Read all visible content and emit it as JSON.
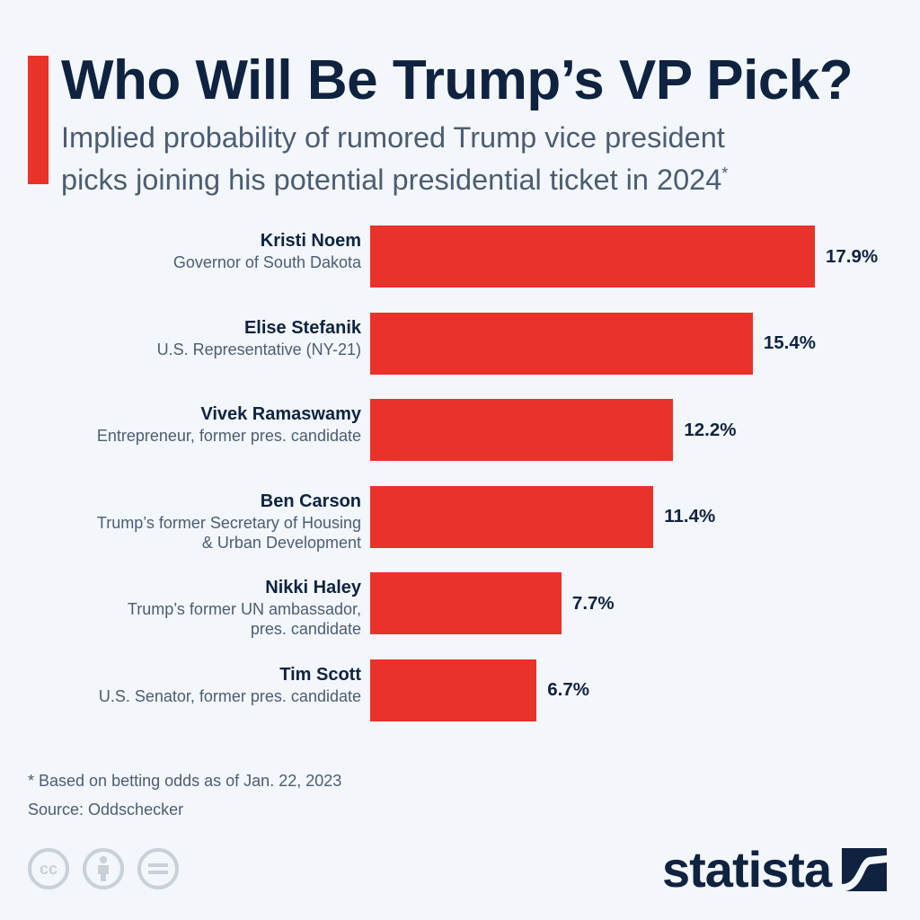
{
  "header": {
    "title": "Who Will Be Trump’s VP Pick?",
    "subtitle_line1": "Implied probability of rumored Trump vice president",
    "subtitle_line2": "picks joining his potential presidential ticket in 2024",
    "subtitle_mark": "*"
  },
  "chart_data": {
    "type": "bar",
    "orientation": "horizontal",
    "title": "Who Will Be Trump’s VP Pick?",
    "xlabel": "",
    "ylabel": "",
    "unit": "%",
    "xlim": [
      0,
      17.9
    ],
    "grid": false,
    "categories": [
      "Kristi Noem",
      "Elise Stefanik",
      "Vivek Ramaswamy",
      "Ben Carson",
      "Nikki Haley",
      "Tim Scott"
    ],
    "descriptions": [
      [
        "Governor of South Dakota"
      ],
      [
        "U.S. Representative (NY-21)"
      ],
      [
        "Entrepreneur, former pres. candidate"
      ],
      [
        "Trump’s former Secretary of Housing",
        "& Urban Development"
      ],
      [
        "Trump’s former UN ambassador,",
        "pres. candidate"
      ],
      [
        "U.S. Senator, former pres. candidate"
      ]
    ],
    "values": [
      17.9,
      15.4,
      12.2,
      11.4,
      7.7,
      6.7
    ],
    "labels": [
      "17.9%",
      "15.4%",
      "12.2%",
      "11.4%",
      "7.7%",
      "6.7%"
    ],
    "bar_color": "#e8322a"
  },
  "footer": {
    "note": "* Based on betting odds as of Jan. 22, 2023",
    "source": "Source: Oddschecker",
    "license_icons": [
      "cc-icon",
      "attribution-icon",
      "no-derivatives-icon"
    ],
    "cc_text": "cc",
    "brand": "statista"
  },
  "colors": {
    "accent": "#e8322a",
    "text_dark": "#0f2340",
    "text_muted": "#4c5d72",
    "background": "#f3f6fa"
  }
}
